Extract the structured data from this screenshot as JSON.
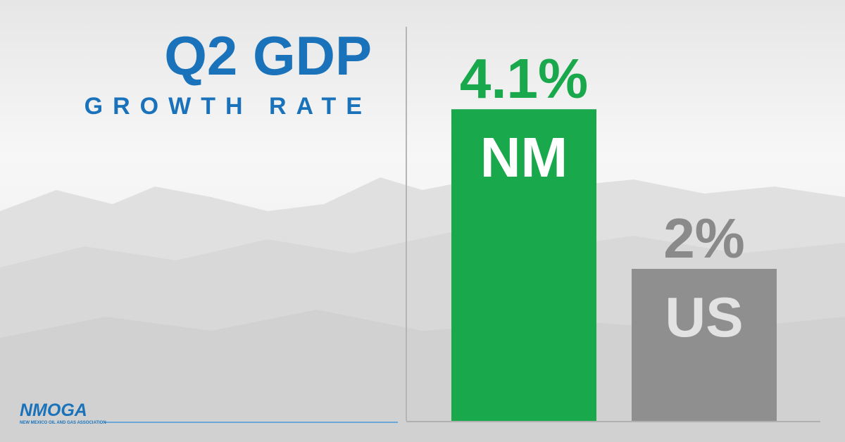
{
  "chart_data": {
    "type": "bar",
    "title": "Q2 GDP",
    "subtitle": "GROWTH RATE",
    "categories": [
      "NM",
      "US"
    ],
    "values": [
      4.1,
      2
    ],
    "value_labels": [
      "4.1%",
      "2%"
    ],
    "colors": [
      "#1aa84c",
      "#8f8f8f"
    ],
    "value_label_colors": [
      "#1aa84c",
      "#8a8a8a"
    ]
  },
  "logo": {
    "name": "NMOGA",
    "tagline": "NEW MEXICO OIL AND GAS ASSOCIATION"
  }
}
